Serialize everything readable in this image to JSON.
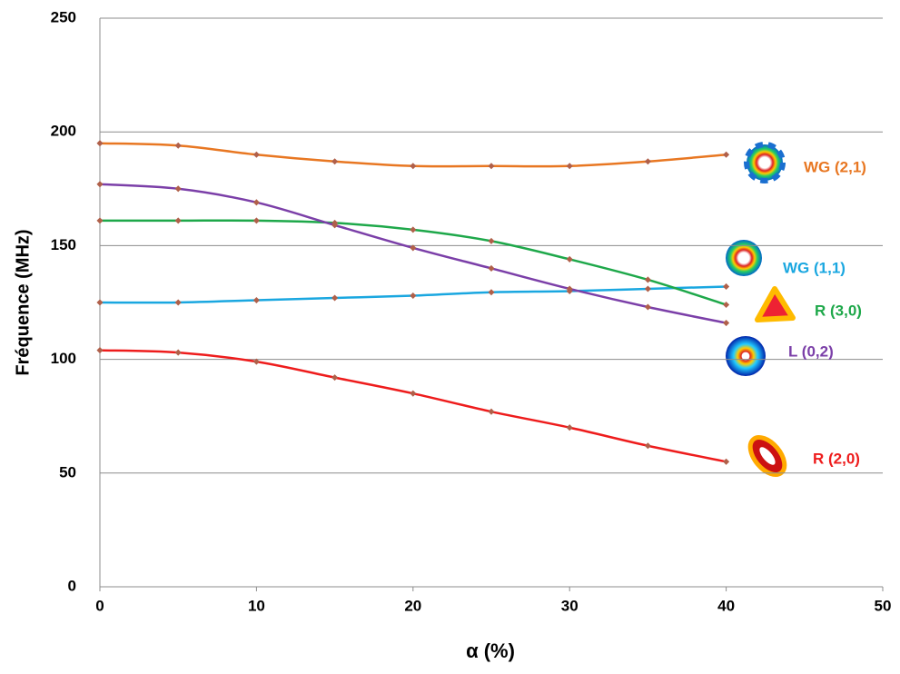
{
  "chart_data": {
    "type": "line",
    "xlabel": "α (%)",
    "ylabel": "Fréquence (MHz)",
    "x": [
      0,
      5,
      10,
      15,
      20,
      25,
      30,
      35,
      40
    ],
    "series": [
      {
        "name": "WG (2,1)",
        "color": "#e87722",
        "values": [
          195,
          194,
          190,
          187,
          185,
          185,
          185,
          187,
          190
        ]
      },
      {
        "name": "WG (1,1)",
        "color": "#1aa7e0",
        "values": [
          125,
          125,
          126,
          127,
          128,
          129.5,
          130,
          131,
          132
        ]
      },
      {
        "name": "R (3,0)",
        "color": "#1ea84a",
        "values": [
          161,
          161,
          161,
          160,
          157,
          152,
          144,
          135,
          124
        ]
      },
      {
        "name": "L (0,2)",
        "color": "#7b3fa8",
        "values": [
          177,
          175,
          169,
          159,
          149,
          140,
          131,
          123,
          116
        ]
      },
      {
        "name": "R (2,0)",
        "color": "#ee1c1c",
        "values": [
          104,
          103,
          99,
          92,
          85,
          77,
          70,
          62,
          55
        ]
      }
    ],
    "marker_color": "#b0604a",
    "xlim": [
      0,
      50
    ],
    "xticks": [
      0,
      10,
      20,
      30,
      40,
      50
    ],
    "ylim": [
      0,
      250
    ],
    "yticks": [
      0,
      50,
      100,
      150,
      200,
      250
    ],
    "grid": true
  }
}
